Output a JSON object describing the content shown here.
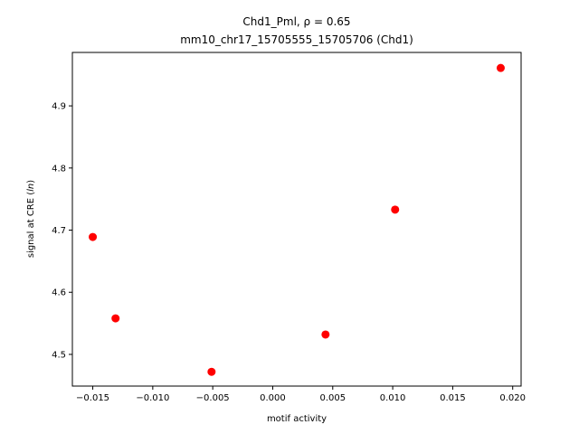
{
  "chart_data": {
    "type": "scatter",
    "title_line1": "Chd1_Pml, ρ = 0.65",
    "title_line2": "mm10_chr17_15705555_15705706 (Chd1)",
    "xlabel": "motif activity",
    "ylabel_prefix": "signal at CRE (",
    "ylabel_italic": "ln",
    "ylabel_suffix": ")",
    "xlim": [
      -0.0167,
      0.0207
    ],
    "ylim": [
      4.449,
      4.986
    ],
    "x_ticks": [
      -0.015,
      -0.01,
      -0.005,
      0.0,
      0.005,
      0.01,
      0.015,
      0.02
    ],
    "x_tick_labels": [
      "−0.015",
      "−0.010",
      "−0.005",
      "0.000",
      "0.005",
      "0.010",
      "0.015",
      "0.020"
    ],
    "y_ticks": [
      4.5,
      4.6,
      4.7,
      4.8,
      4.9
    ],
    "y_tick_labels": [
      "4.5",
      "4.6",
      "4.7",
      "4.8",
      "4.9"
    ],
    "grid": false,
    "marker_color": "#ff0000",
    "points": [
      {
        "x": -0.015,
        "y": 4.689
      },
      {
        "x": -0.0131,
        "y": 4.558
      },
      {
        "x": -0.0051,
        "y": 4.472
      },
      {
        "x": 0.0044,
        "y": 4.532
      },
      {
        "x": 0.0102,
        "y": 4.733
      },
      {
        "x": 0.019,
        "y": 4.961
      }
    ]
  }
}
